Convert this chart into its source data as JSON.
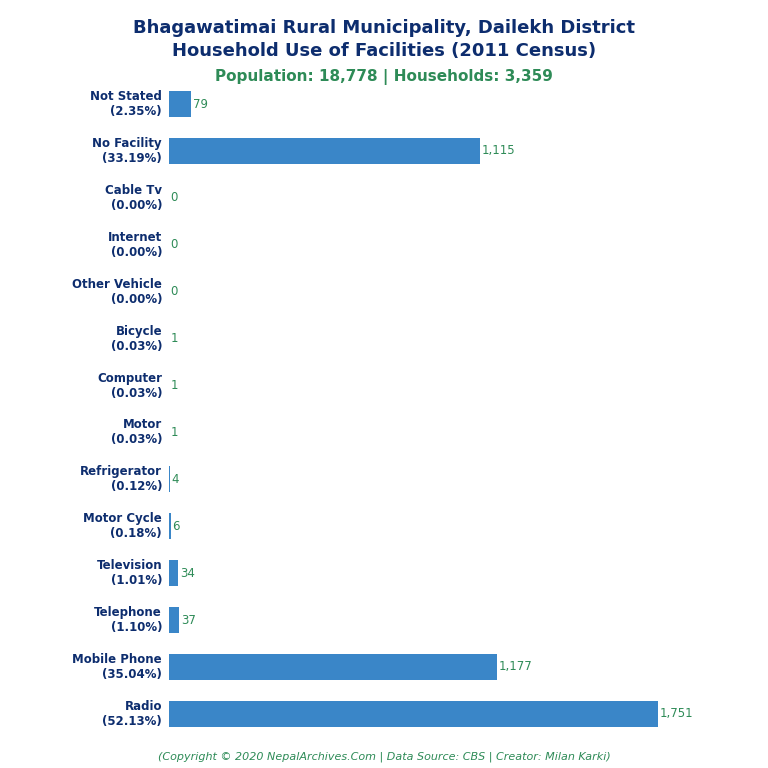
{
  "title_line1": "Bhagawatimai Rural Municipality, Dailekh District",
  "title_line2": "Household Use of Facilities (2011 Census)",
  "subtitle": "Population: 18,778 | Households: 3,359",
  "footer": "(Copyright © 2020 NepalArchives.Com | Data Source: CBS | Creator: Milan Karki)",
  "categories": [
    "Not Stated\n(2.35%)",
    "No Facility\n(33.19%)",
    "Cable Tv\n(0.00%)",
    "Internet\n(0.00%)",
    "Other Vehicle\n(0.00%)",
    "Bicycle\n(0.03%)",
    "Computer\n(0.03%)",
    "Motor\n(0.03%)",
    "Refrigerator\n(0.12%)",
    "Motor Cycle\n(0.18%)",
    "Television\n(1.01%)",
    "Telephone\n(1.10%)",
    "Mobile Phone\n(35.04%)",
    "Radio\n(52.13%)"
  ],
  "values": [
    79,
    1115,
    0,
    0,
    0,
    1,
    1,
    1,
    4,
    6,
    34,
    37,
    1177,
    1751
  ],
  "bar_color": "#3a86c8",
  "title_color": "#0d2d6e",
  "subtitle_color": "#2e8b57",
  "footer_color": "#2e8b57",
  "value_color": "#2e8b57",
  "ylabel_color": "#0d2d6e",
  "background_color": "#ffffff",
  "figsize": [
    7.68,
    7.68
  ],
  "dpi": 100
}
